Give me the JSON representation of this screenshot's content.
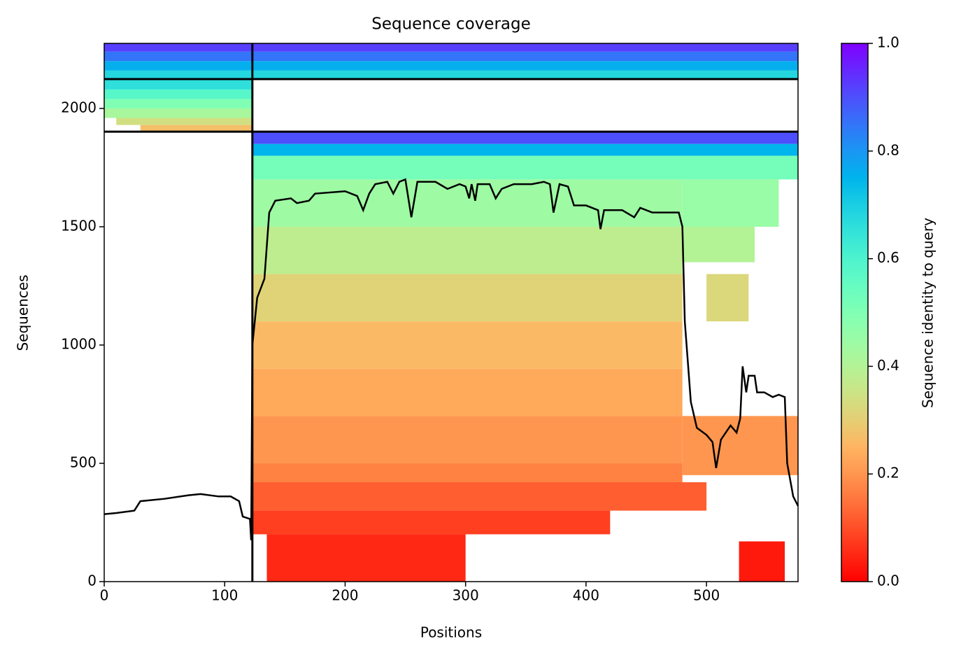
{
  "chart_data": {
    "type": "msa_coverage",
    "title": "Sequence coverage",
    "x_label": "Positions",
    "y_label": "Sequences",
    "colorbar_label": "Sequence identity to query",
    "colormap": "rainbow_r",
    "xlim": [
      0,
      576
    ],
    "ylim": [
      0,
      2275
    ],
    "xticks": [
      0,
      100,
      200,
      300,
      400,
      500
    ],
    "yticks": [
      0,
      500,
      1000,
      1500,
      2000
    ],
    "clim": [
      0,
      1
    ],
    "cticks": [
      {
        "value": 0,
        "label": "0.0"
      },
      {
        "value": 0.2,
        "label": "0.2"
      },
      {
        "value": 0.4,
        "label": "0.4"
      },
      {
        "value": 0.6,
        "label": "0.6"
      },
      {
        "value": 0.8,
        "label": "0.8"
      },
      {
        "value": 1,
        "label": "1.0"
      }
    ],
    "hlines": [
      2124,
      1902
    ],
    "vlines": [
      123
    ],
    "blocks": [
      {
        "x": [
          0,
          576
        ],
        "y": [
          2240,
          2275
        ],
        "identity": 0.92
      },
      {
        "x": [
          0,
          576
        ],
        "y": [
          2200,
          2240
        ],
        "identity": 0.85
      },
      {
        "x": [
          0,
          576
        ],
        "y": [
          2160,
          2200
        ],
        "identity": 0.76
      },
      {
        "x": [
          0,
          576
        ],
        "y": [
          2124,
          2160
        ],
        "identity": 0.68
      },
      {
        "x": [
          0,
          123
        ],
        "y": [
          2080,
          2124
        ],
        "identity": 0.66
      },
      {
        "x": [
          0,
          123
        ],
        "y": [
          2040,
          2080
        ],
        "identity": 0.58
      },
      {
        "x": [
          0,
          123
        ],
        "y": [
          2000,
          2040
        ],
        "identity": 0.5
      },
      {
        "x": [
          0,
          123
        ],
        "y": [
          1960,
          2000
        ],
        "identity": 0.42
      },
      {
        "x": [
          10,
          123
        ],
        "y": [
          1930,
          1960
        ],
        "identity": 0.34
      },
      {
        "x": [
          30,
          123
        ],
        "y": [
          1902,
          1930
        ],
        "identity": 0.27
      },
      {
        "x": [
          123,
          576
        ],
        "y": [
          1850,
          1902
        ],
        "identity": 0.9
      },
      {
        "x": [
          123,
          576
        ],
        "y": [
          1800,
          1850
        ],
        "identity": 0.75
      },
      {
        "x": [
          123,
          576
        ],
        "y": [
          1700,
          1800
        ],
        "identity": 0.52
      },
      {
        "x": [
          123,
          480
        ],
        "y": [
          1500,
          1700
        ],
        "identity": 0.44
      },
      {
        "x": [
          123,
          480
        ],
        "y": [
          1300,
          1500
        ],
        "identity": 0.38
      },
      {
        "x": [
          123,
          480
        ],
        "y": [
          1100,
          1300
        ],
        "identity": 0.31
      },
      {
        "x": [
          123,
          480
        ],
        "y": [
          900,
          1100
        ],
        "identity": 0.26
      },
      {
        "x": [
          123,
          480
        ],
        "y": [
          700,
          900
        ],
        "identity": 0.23
      },
      {
        "x": [
          123,
          480
        ],
        "y": [
          500,
          700
        ],
        "identity": 0.2
      },
      {
        "x": [
          123,
          480
        ],
        "y": [
          420,
          500
        ],
        "identity": 0.17
      },
      {
        "x": [
          123,
          500
        ],
        "y": [
          300,
          420
        ],
        "identity": 0.12
      },
      {
        "x": [
          123,
          420
        ],
        "y": [
          200,
          300
        ],
        "identity": 0.08
      },
      {
        "x": [
          135,
          300
        ],
        "y": [
          0,
          200
        ],
        "identity": 0.05
      },
      {
        "x": [
          480,
          560
        ],
        "y": [
          1500,
          1700
        ],
        "identity": 0.45
      },
      {
        "x": [
          480,
          540
        ],
        "y": [
          1350,
          1500
        ],
        "identity": 0.4
      },
      {
        "x": [
          500,
          535
        ],
        "y": [
          1100,
          1300
        ],
        "identity": 0.32
      },
      {
        "x": [
          480,
          576
        ],
        "y": [
          450,
          700
        ],
        "identity": 0.2
      },
      {
        "x": [
          527,
          565
        ],
        "y": [
          0,
          170
        ],
        "identity": 0.03
      }
    ],
    "coverage": {
      "color": "#000000",
      "x": [
        0,
        10,
        25,
        30,
        50,
        70,
        80,
        95,
        105,
        112,
        115,
        121,
        122,
        123,
        127,
        133,
        137,
        142,
        155,
        160,
        170,
        175,
        200,
        210,
        215,
        220,
        225,
        235,
        240,
        245,
        250,
        255,
        260,
        275,
        285,
        295,
        300,
        303,
        305,
        308,
        310,
        320,
        325,
        330,
        340,
        355,
        365,
        370,
        373,
        378,
        385,
        390,
        400,
        410,
        412,
        415,
        430,
        440,
        445,
        455,
        477,
        480,
        482,
        487,
        492,
        500,
        505,
        508,
        512,
        520,
        525,
        528,
        530,
        533,
        535,
        540,
        542,
        548,
        555,
        560,
        565,
        567,
        572,
        576
      ],
      "values": [
        285,
        290,
        300,
        340,
        350,
        365,
        370,
        360,
        360,
        340,
        275,
        265,
        175,
        1000,
        1200,
        1280,
        1560,
        1610,
        1620,
        1600,
        1610,
        1640,
        1650,
        1630,
        1570,
        1640,
        1680,
        1690,
        1640,
        1690,
        1700,
        1540,
        1690,
        1690,
        1660,
        1680,
        1670,
        1620,
        1680,
        1610,
        1680,
        1680,
        1620,
        1660,
        1680,
        1680,
        1690,
        1680,
        1560,
        1680,
        1670,
        1590,
        1590,
        1570,
        1490,
        1570,
        1570,
        1540,
        1580,
        1560,
        1560,
        1500,
        1100,
        760,
        650,
        620,
        590,
        480,
        600,
        660,
        630,
        690,
        910,
        800,
        870,
        870,
        800,
        800,
        780,
        790,
        780,
        500,
        360,
        320
      ]
    }
  }
}
